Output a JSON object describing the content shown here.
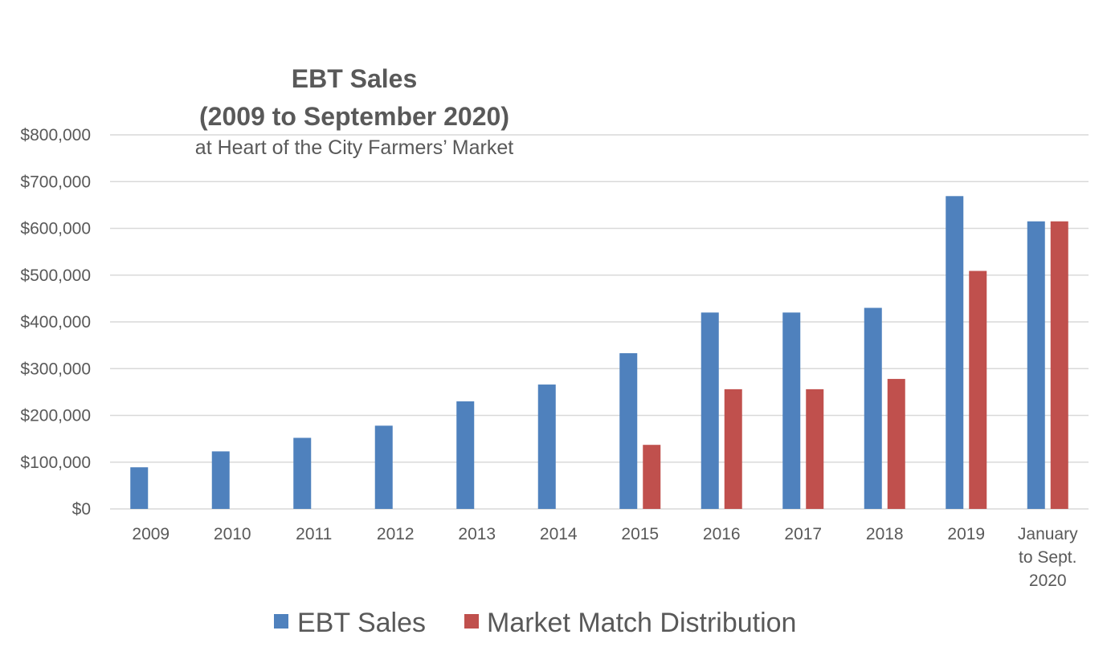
{
  "chart_data": {
    "type": "bar",
    "title": "EBT Sales",
    "title_line2": "(2009 to September 2020)",
    "subtitle": "at Heart of the City Farmers’ Market",
    "xlabel": "",
    "ylabel": "",
    "categories": [
      "2009",
      "2010",
      "2011",
      "2012",
      "2013",
      "2014",
      "2015",
      "2016",
      "2017",
      "2018",
      "2019",
      "January to Sept. 2020"
    ],
    "category_lines": [
      [
        "2009"
      ],
      [
        "2010"
      ],
      [
        "2011"
      ],
      [
        "2012"
      ],
      [
        "2013"
      ],
      [
        "2014"
      ],
      [
        "2015"
      ],
      [
        "2016"
      ],
      [
        "2017"
      ],
      [
        "2018"
      ],
      [
        "2019"
      ],
      [
        "January",
        "to Sept.",
        "2020"
      ]
    ],
    "series": [
      {
        "name": "EBT Sales",
        "color": "#4f81bd",
        "values": [
          89000,
          123000,
          152000,
          178000,
          230000,
          266000,
          333000,
          420000,
          420000,
          430000,
          669000,
          615000
        ]
      },
      {
        "name": "Market Match Distribution",
        "color": "#c0504d",
        "values": [
          null,
          null,
          null,
          null,
          null,
          null,
          137000,
          256000,
          256000,
          278000,
          509000,
          615000
        ]
      }
    ],
    "ylim": [
      0,
      800000
    ],
    "yticks": [
      0,
      100000,
      200000,
      300000,
      400000,
      500000,
      600000,
      700000,
      800000
    ],
    "ytick_labels": [
      "$0",
      "$100,000",
      "$200,000",
      "$300,000",
      "$400,000",
      "$500,000",
      "$600,000",
      "$700,000",
      "$800,000"
    ],
    "grid": true,
    "legend_position": "bottom",
    "gridline_color": "#d9d9d9",
    "text_color": "#595959"
  }
}
